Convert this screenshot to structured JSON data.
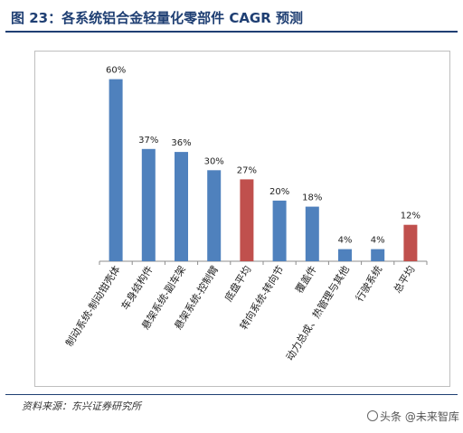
{
  "header": {
    "title": "图 23：各系统铝合金轻量化零部件 CAGR 预测"
  },
  "footer": {
    "source": "资料来源：东兴证券研究所",
    "watermark": "头条 @未来智库"
  },
  "chart_data": {
    "type": "bar",
    "categories": [
      "制动系统-制动钳壳体",
      "车身结构件",
      "悬架系统-副车架",
      "悬架系统-控制臂",
      "底盘平均",
      "转向系统-转向节",
      "覆盖件",
      "动力总成、热管理与其他",
      "行驶系统",
      "总平均"
    ],
    "values": [
      60,
      37,
      36,
      30,
      27,
      20,
      18,
      4,
      4,
      12
    ],
    "data_labels": [
      "60%",
      "37%",
      "36%",
      "30%",
      "27%",
      "20%",
      "18%",
      "4%",
      "4%",
      "12%"
    ],
    "highlight_indices": [
      4,
      9
    ],
    "colors": {
      "normal": "#4f81bd",
      "highlight": "#c0504d"
    },
    "ylim": [
      0,
      70
    ],
    "grid": false,
    "legend": "none"
  }
}
